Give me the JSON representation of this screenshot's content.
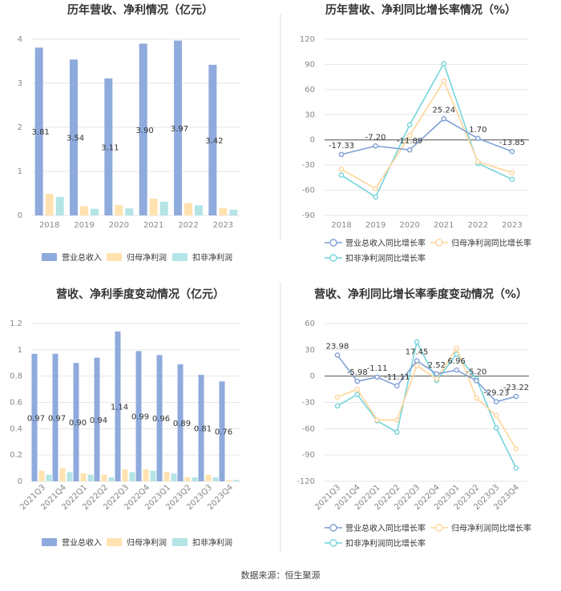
{
  "colors": {
    "revenue": "#8faadc",
    "net_profit": "#ffe2b0",
    "deducted_profit": "#b4e4e6",
    "revenue_line": "#7f9fd4",
    "net_line": "#ffd59a",
    "deducted_line": "#74d4da",
    "grid": "#e6e6e6",
    "divider": "#dddddd"
  },
  "source": "数据来源：恒生聚源",
  "chart_data": [
    {
      "type": "bar",
      "title": "历年营收、净利情况（亿元）",
      "categories": [
        "2018",
        "2019",
        "2020",
        "2021",
        "2022",
        "2023"
      ],
      "series": [
        {
          "name": "营业总收入",
          "values": [
            3.81,
            3.54,
            3.11,
            3.9,
            3.97,
            3.42
          ]
        },
        {
          "name": "归母净利润",
          "values": [
            0.49,
            0.21,
            0.24,
            0.38,
            0.28,
            0.17
          ]
        },
        {
          "name": "扣非净利润",
          "values": [
            0.42,
            0.15,
            0.16,
            0.31,
            0.23,
            0.13
          ]
        }
      ],
      "data_labels": [
        "3.81",
        "3.54",
        "3.11",
        "3.90",
        "3.97",
        "3.42"
      ],
      "ylim": [
        0,
        4
      ],
      "yticks": [
        "0",
        "1",
        "2",
        "3",
        "4"
      ],
      "legend": "bottom"
    },
    {
      "type": "line",
      "title": "历年营收、净利同比增长率情况（%）",
      "categories": [
        "2018",
        "2019",
        "2020",
        "2021",
        "2022",
        "2023"
      ],
      "series": [
        {
          "name": "营业总收入同比增长率",
          "values": [
            -17.33,
            -7.2,
            -11.89,
            25.24,
            1.7,
            -13.85
          ]
        },
        {
          "name": "归母净利润同比增长率",
          "values": [
            -35,
            -58,
            5,
            70,
            -26,
            -39
          ]
        },
        {
          "name": "扣非净利润同比增长率",
          "values": [
            -42,
            -68,
            18,
            91,
            -28,
            -47
          ]
        }
      ],
      "data_labels": [
        "-17.33",
        "-7.20",
        "-11.89",
        "25.24",
        "1.70",
        "-13.85"
      ],
      "ylim": [
        -90,
        120
      ],
      "yticks": [
        "-90",
        "-60",
        "-30",
        "0",
        "30",
        "60",
        "90",
        "120"
      ],
      "legend": "bottom"
    },
    {
      "type": "bar",
      "title": "营收、净利季度变动情况（亿元）",
      "categories": [
        "2021Q3",
        "2021Q4",
        "2022Q1",
        "2022Q2",
        "2022Q3",
        "2022Q4",
        "2023Q1",
        "2023Q2",
        "2023Q3",
        "2023Q4"
      ],
      "series": [
        {
          "name": "营业总收入",
          "values": [
            0.97,
            0.97,
            0.9,
            0.94,
            1.14,
            0.99,
            0.96,
            0.89,
            0.81,
            0.76
          ]
        },
        {
          "name": "归母净利润",
          "values": [
            0.08,
            0.1,
            0.06,
            0.05,
            0.09,
            0.09,
            0.07,
            0.03,
            0.05,
            0.01
          ]
        },
        {
          "name": "扣非净利润",
          "values": [
            0.05,
            0.07,
            0.05,
            0.03,
            0.07,
            0.08,
            0.06,
            0.03,
            0.03,
            0.01
          ]
        }
      ],
      "data_labels": [
        "0.97",
        "0.97",
        "0.90",
        "0.94",
        "1.14",
        "0.99",
        "0.96",
        "0.89",
        "0.81",
        "0.76"
      ],
      "ylim": [
        0,
        1.2
      ],
      "yticks": [
        "0",
        "0.2",
        "0.4",
        "0.6",
        "0.8",
        "1",
        "1.2"
      ],
      "legend": "bottom"
    },
    {
      "type": "line",
      "title": "营收、净利同比增长率季度变动情况（%）",
      "categories": [
        "2021Q3",
        "2021Q4",
        "2022Q1",
        "2022Q2",
        "2022Q3",
        "2022Q4",
        "2023Q1",
        "2023Q2",
        "2023Q3",
        "2023Q4"
      ],
      "series": [
        {
          "name": "营业总收入同比增长率",
          "values": [
            23.98,
            -5.98,
            -1.11,
            -11.11,
            17.45,
            2.52,
            6.96,
            -5.2,
            -29.23,
            -23.22
          ]
        },
        {
          "name": "归母净利润同比增长率",
          "values": [
            -24,
            -15,
            -50,
            -50,
            12,
            -3,
            32,
            -25,
            -45,
            -83
          ]
        },
        {
          "name": "扣非净利润同比增长率",
          "values": [
            -34,
            -21,
            -51,
            -64,
            39,
            -5,
            25,
            -3,
            -59,
            -105
          ]
        }
      ],
      "data_labels": [
        "23.98",
        "-5.98",
        "-1.11",
        "-11.11",
        "17.45",
        "2.52",
        "6.96",
        "-5.20",
        "-29.23",
        "-23.22"
      ],
      "ylim": [
        -120,
        60
      ],
      "yticks": [
        "-120",
        "-90",
        "-60",
        "-30",
        "0",
        "30",
        "60"
      ],
      "legend": "bottom"
    }
  ]
}
